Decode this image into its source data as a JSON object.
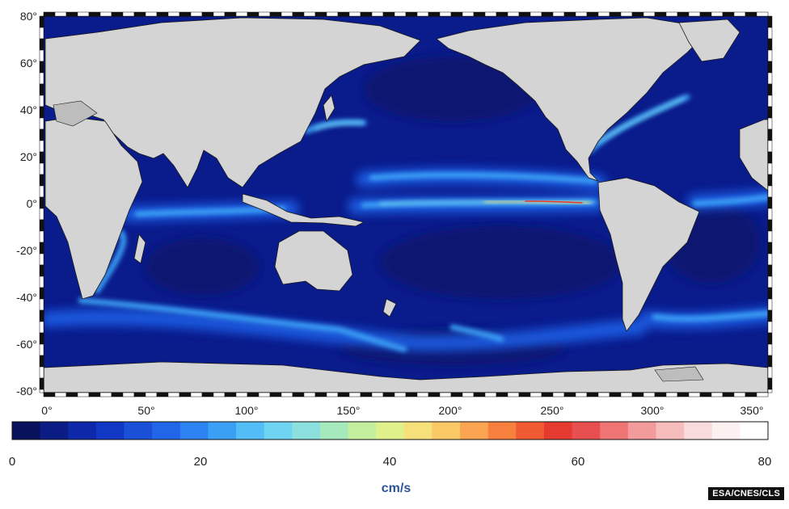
{
  "map": {
    "latitude_labels": [
      "80°",
      "60°",
      "40°",
      "20°",
      "0°",
      "-20°",
      "-40°",
      "-60°",
      "-80°"
    ],
    "longitude_labels": [
      "0°",
      "50°",
      "100°",
      "150°",
      "200°",
      "250°",
      "300°",
      "350°"
    ],
    "latitude_range": [
      -80,
      80
    ],
    "longitude_range": [
      0,
      360
    ],
    "ocean_base_color": "#0a1b8c",
    "land_color": "#d4d4d4",
    "ice_color": "#bdbdbd"
  },
  "colorbar": {
    "tick_labels": [
      "0",
      "20",
      "40",
      "60",
      "80"
    ],
    "ticks": [
      0,
      20,
      40,
      60,
      80
    ],
    "range": [
      0,
      80
    ],
    "unit": "cm/s",
    "colors": [
      "#08115c",
      "#0b1c84",
      "#0d28a8",
      "#1138c4",
      "#1a4fd8",
      "#2166e8",
      "#2b82f0",
      "#3aa0f5",
      "#52bdf7",
      "#6fd3f2",
      "#8be0dd",
      "#a5e9bd",
      "#c4ef9f",
      "#e0f08a",
      "#f5e07a",
      "#fbc866",
      "#fba552",
      "#f7803e",
      "#f05a33",
      "#e43a2f",
      "#e84f4f",
      "#ef7474",
      "#f39a9a",
      "#f7bdbd",
      "#fadbdb",
      "#fdf0f0",
      "#ffffff"
    ]
  },
  "credit": "ESA/CNES/CLS"
}
